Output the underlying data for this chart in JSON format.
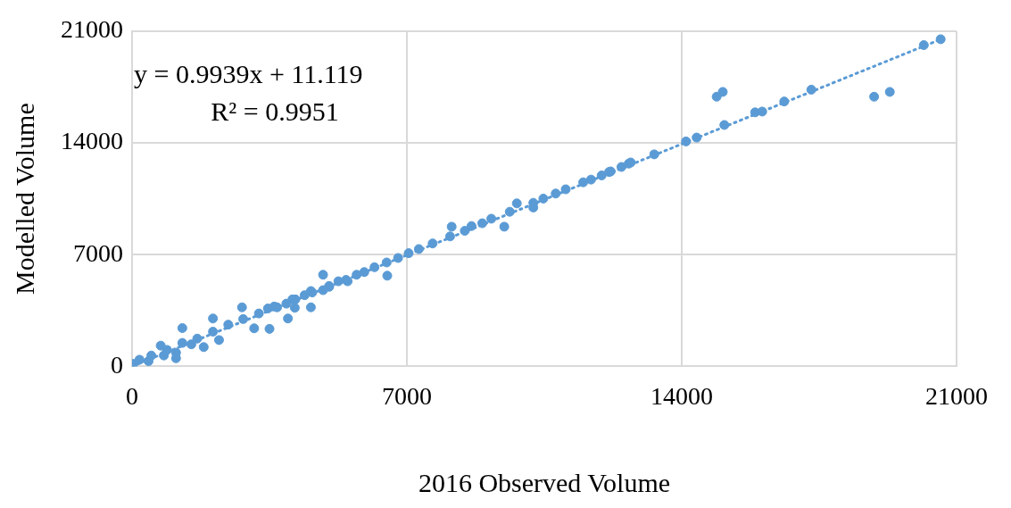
{
  "chart_data": {
    "type": "scatter",
    "xlabel": "2016 Observed Volume",
    "ylabel": "Modelled Volume",
    "xlim": [
      0,
      21000
    ],
    "xticks": [
      0,
      7000,
      14000,
      21000
    ],
    "ylim": [
      0,
      21000
    ],
    "yticks": [
      0,
      7000,
      14000,
      21000
    ],
    "grid": true,
    "legend": false,
    "marker": "circle",
    "annotations": [
      "y = 0.9939x + 11.119",
      "R² = 0.9951"
    ],
    "series": [
      {
        "color": "#5b9bd5",
        "x": [
          20595,
          20165,
          19300,
          18900,
          17300,
          16610,
          16050,
          15870,
          15045,
          14890,
          15085,
          14380,
          14110,
          13300,
          12700,
          12465,
          12190,
          12650,
          12150,
          11960,
          11690,
          11490,
          11045,
          10790,
          10475,
          10220,
          10220,
          9800,
          9620,
          9480,
          9150,
          8920,
          8645,
          8475,
          8140,
          8100,
          7655,
          7305,
          7045,
          6775,
          6485,
          6500,
          6175,
          5915,
          5720,
          5450,
          5255,
          5020,
          4865,
          4865,
          4590,
          4555,
          4395,
          4160,
          4145,
          3930,
          3695,
          3460,
          3970,
          3500,
          3110,
          2800,
          2060,
          1280,
          2215,
          1120,
          30,
          490,
          890,
          1280,
          1660,
          2060,
          2450,
          2830,
          3230,
          3620,
          4085,
          4555,
          5020,
          5490,
          730,
          1825,
          190,
          420,
          810,
          1120,
          1510
        ],
        "values": [
          20490,
          20120,
          17190,
          16890,
          17330,
          16590,
          15960,
          15910,
          17190,
          16890,
          15120,
          14330,
          14090,
          13280,
          12770,
          12490,
          12210,
          12700,
          12175,
          11960,
          11700,
          11530,
          11090,
          10825,
          10510,
          10245,
          9950,
          10210,
          9685,
          8750,
          9250,
          8965,
          8790,
          8490,
          8750,
          8140,
          7700,
          7350,
          7090,
          6790,
          6510,
          5680,
          6210,
          5910,
          5740,
          5420,
          5330,
          5035,
          5740,
          4775,
          4630,
          3700,
          4460,
          4195,
          3670,
          3930,
          3700,
          3630,
          3000,
          2350,
          2385,
          3700,
          3000,
          2400,
          1650,
          510,
          160,
          680,
          1035,
          1470,
          1740,
          2175,
          2615,
          2965,
          3315,
          3750,
          4195,
          4720,
          4985,
          5330,
          1300,
          1210,
          420,
          330,
          685,
          860,
          1385
        ]
      },
      {
        "color": "#5b9bd5",
        "type": "line",
        "line_style": "dotted",
        "marker": "none",
        "x": [
          0,
          20600
        ],
        "values": [
          11,
          20486
        ]
      }
    ]
  }
}
